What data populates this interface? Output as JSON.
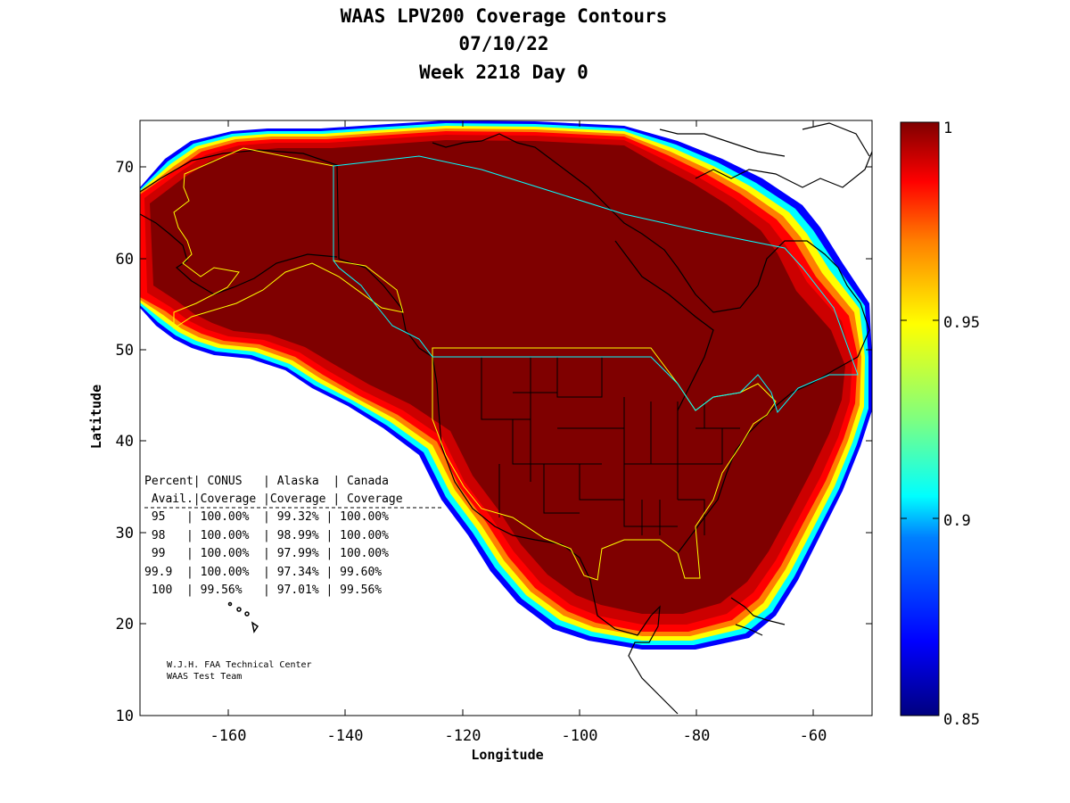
{
  "titles": {
    "line1": "WAAS LPV200 Coverage Contours",
    "line2": "07/10/22",
    "line3": "Week 2218 Day 0"
  },
  "axes": {
    "xlabel": "Longitude",
    "ylabel": "Latitude",
    "x_ticks": [
      "-160",
      "-140",
      "-120",
      "-100",
      "-80",
      "-60"
    ],
    "y_ticks": [
      "10",
      "20",
      "30",
      "40",
      "50",
      "60",
      "70"
    ]
  },
  "colorbar": {
    "ticks": [
      "1",
      "0.95",
      "0.9",
      "0.85"
    ],
    "colors": [
      "#00007f",
      "#0000ff",
      "#007fff",
      "#00ffff",
      "#7fff7f",
      "#ffff00",
      "#ff7f00",
      "#ff0000",
      "#7f0000"
    ]
  },
  "coverage_table": {
    "header1": [
      "Percent|",
      "CONUS",
      "| Alaska",
      "| Canada"
    ],
    "header2": [
      " Avail.|Coverage",
      "|Coverage",
      "| Coverage"
    ],
    "rows": [
      " 95   | 100.00%  | 99.32% | 100.00%",
      " 98   | 100.00%  | 98.99% | 100.00%",
      " 99   | 100.00%  | 97.99% | 100.00%",
      "99.9  | 100.00%  | 97.34% | 99.60%",
      " 100  | 99.56%   | 97.01% | 99.56%"
    ]
  },
  "credits": {
    "line1": "W.J.H. FAA Technical Center",
    "line2": "WAAS Test Team"
  },
  "map_data": {
    "lon_range": [
      -175,
      -50
    ],
    "lat_range": [
      10,
      75
    ],
    "color_scale": [
      0.85,
      1.0
    ],
    "service_region_colors": {
      "alaska_conus": "#ffff00",
      "canada": "#00ffff"
    }
  }
}
